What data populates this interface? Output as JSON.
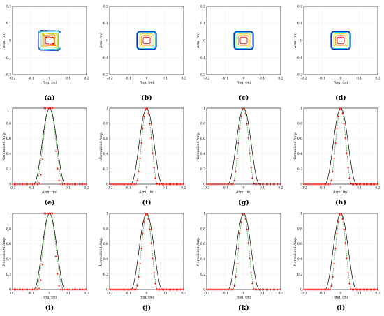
{
  "figure": {
    "panels": [
      {
        "id": "a",
        "label": "(a)",
        "type": "contour",
        "variant": 0
      },
      {
        "id": "b",
        "label": "(b)",
        "type": "contour",
        "variant": 1
      },
      {
        "id": "c",
        "label": "(c)",
        "type": "contour",
        "variant": 2
      },
      {
        "id": "d",
        "label": "(d)",
        "type": "contour",
        "variant": 2
      },
      {
        "id": "e",
        "label": "(e)",
        "type": "profile",
        "variant": 0
      },
      {
        "id": "f",
        "label": "(f)",
        "type": "profile",
        "variant": 1
      },
      {
        "id": "g",
        "label": "(g)",
        "type": "profile",
        "variant": 2
      },
      {
        "id": "h",
        "label": "(h)",
        "type": "profile",
        "variant": 2
      },
      {
        "id": "i",
        "label": "(i)",
        "type": "profile",
        "variant": 0
      },
      {
        "id": "j",
        "label": "(j)",
        "type": "profile",
        "variant": 1
      },
      {
        "id": "k",
        "label": "(k)",
        "type": "profile",
        "variant": 2
      },
      {
        "id": "l",
        "label": "(l)",
        "type": "profile",
        "variant": 2
      }
    ],
    "xlabel_contour": "Rng. (m)",
    "ylabel_contour": "Azm. (m)",
    "ylabel_profile": "Normalized Amp.",
    "xlabel_row2": "Azm. (m)",
    "xlabel_row3": "Rng. (m)",
    "colors": {
      "black": "#000000",
      "green": "#2ca02c",
      "red": "#ff0000",
      "blue": "#0033cc",
      "cyan": "#22c8e0",
      "yellow": "#d8d800",
      "orange": "#ff8800",
      "magenta": "#dd2277"
    }
  },
  "chart_data": [
    {
      "type": "contour",
      "title": "",
      "xlabel": "Rng. (m)",
      "ylabel": "Azm. (m)",
      "xlim": [
        -0.2,
        0.2
      ],
      "ylim": [
        -0.2,
        0.2
      ],
      "xticks": [
        "-0.2",
        "-0.1",
        "0",
        "0.1",
        "0.2"
      ],
      "yticks": [
        "0.2",
        "0.1",
        "0",
        "-0.1",
        "-0.2"
      ],
      "grid": true,
      "contours": [
        {
          "color": "#0033cc",
          "half_width": 0.055,
          "shape": "square-rounded"
        },
        {
          "color": "#22c8e0",
          "half_width": 0.05,
          "shape": "square-rounded"
        },
        {
          "color": "#d8d800",
          "half_width": 0.04,
          "shape": "square-rounded"
        },
        {
          "color": "#ff8800",
          "half_width": 0.03,
          "shape": "square-rounded"
        },
        {
          "color": "#ff0000",
          "half_width": 0.02,
          "shape": "square-rounded"
        }
      ]
    },
    {
      "type": "line",
      "title": "",
      "xlabel": "Azm. (m)",
      "ylabel": "Normalized Amp.",
      "xlim": [
        -0.2,
        0.2
      ],
      "ylim": [
        0,
        1
      ],
      "xticks": [
        "-0.2",
        "-0.1",
        "0",
        "0.1",
        "0.2"
      ],
      "yticks": [
        "0",
        "0.2",
        "0.4",
        "0.6",
        "0.8",
        "1"
      ],
      "grid": true,
      "series": [
        {
          "color": "#000000",
          "style": "solid",
          "x": [
            -0.08,
            -0.04,
            0,
            0.04,
            0.08
          ],
          "values": [
            0,
            0.5,
            1,
            0.5,
            0
          ]
        },
        {
          "color": "#2ca02c",
          "style": "dashed",
          "x": [
            -0.06,
            -0.03,
            0,
            0.03,
            0.06
          ],
          "values": [
            0,
            0.5,
            1,
            0.5,
            0
          ]
        },
        {
          "color": "#ff0000",
          "style": "plus-markers",
          "x": [
            -0.06,
            -0.03,
            0,
            0.03,
            0.06
          ],
          "values": [
            0,
            0.5,
            1,
            0.5,
            0
          ]
        }
      ]
    }
  ]
}
